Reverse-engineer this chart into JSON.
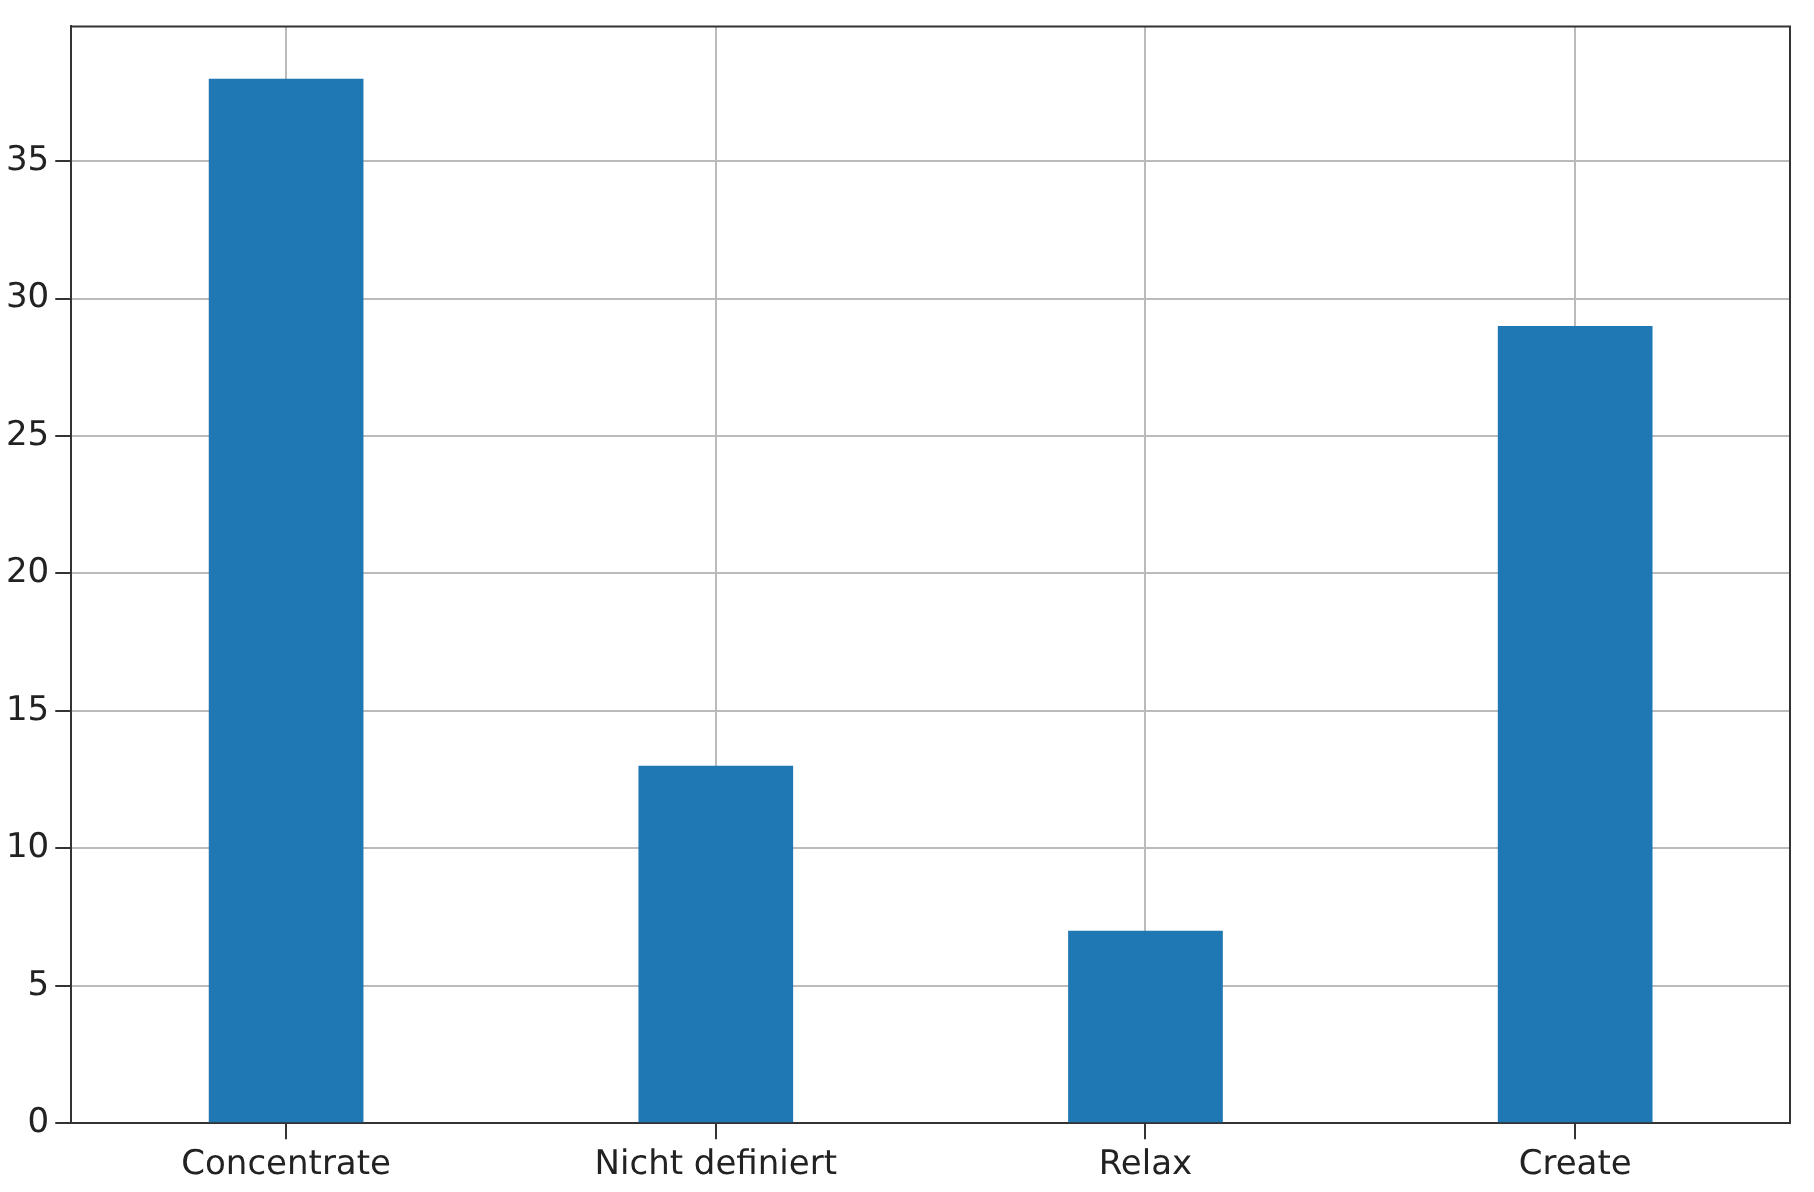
{
  "chart_data": {
    "type": "bar",
    "categories": [
      "Concentrate",
      "Nicht definiert",
      "Relax",
      "Create"
    ],
    "values": [
      38,
      13,
      7,
      29
    ],
    "color": "#1f77b4",
    "ylim": [
      0,
      39.9
    ],
    "yticks": [
      0,
      5,
      10,
      15,
      20,
      25,
      30,
      35
    ],
    "grid": true
  }
}
